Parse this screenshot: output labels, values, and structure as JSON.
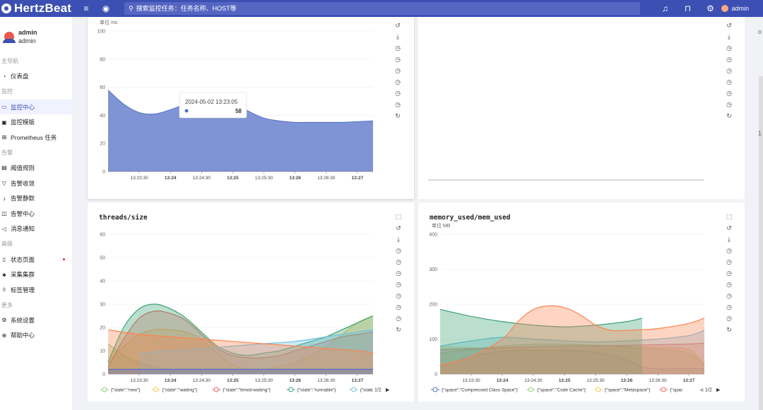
{
  "app": {
    "logo_text": "HertzBeat",
    "search_placeholder": "搜索监控任务：任务名称、HOST等",
    "user": "admin"
  },
  "user_card": {
    "name": "admin",
    "role": "admin"
  },
  "nav": [
    {
      "type": "group",
      "label": "主导航"
    },
    {
      "type": "item",
      "label": "仪表盘",
      "icon": "dashboard-icon",
      "glyph": "◔"
    },
    {
      "type": "group",
      "label": "监控"
    },
    {
      "type": "item",
      "label": "监控中心",
      "icon": "monitor-icon",
      "glyph": "▭",
      "active": true
    },
    {
      "type": "item",
      "label": "监控模版",
      "icon": "template-icon",
      "glyph": "▣"
    },
    {
      "type": "item",
      "label": "Prometheus 任务",
      "icon": "grid-icon",
      "glyph": "⊞"
    },
    {
      "type": "group",
      "label": "告警"
    },
    {
      "type": "item",
      "label": "阈值规则",
      "icon": "threshold-icon",
      "glyph": "▤"
    },
    {
      "type": "item",
      "label": "告警收敛",
      "icon": "filter-icon",
      "glyph": "▽"
    },
    {
      "type": "item",
      "label": "告警静默",
      "icon": "silence-icon",
      "glyph": "♪"
    },
    {
      "type": "item",
      "label": "告警中心",
      "icon": "alert-center-icon",
      "glyph": "◫"
    },
    {
      "type": "item",
      "label": "消息通知",
      "icon": "notify-icon",
      "glyph": "◁"
    },
    {
      "type": "group",
      "label": "高级"
    },
    {
      "type": "item",
      "label": "状态页面",
      "icon": "status-page-icon",
      "glyph": "▯",
      "dot": true
    },
    {
      "type": "item",
      "label": "采集集群",
      "icon": "cluster-icon",
      "glyph": "♣"
    },
    {
      "type": "item",
      "label": "标签管理",
      "icon": "tag-icon",
      "glyph": "◊"
    },
    {
      "type": "group",
      "label": "更多"
    },
    {
      "type": "item",
      "label": "系统设置",
      "icon": "settings-icon",
      "glyph": "⚙"
    },
    {
      "type": "item",
      "label": "帮助中心",
      "icon": "help-icon",
      "glyph": "⊕"
    }
  ],
  "tools_top": [
    "↺",
    "⤓",
    "◷",
    "◷",
    "◷",
    "◷",
    "◷",
    "◷",
    "↻"
  ],
  "tools_bottom": [
    "⬚",
    "↺",
    "⤓",
    "◷",
    "◷",
    "◷",
    "◷",
    "◷",
    "◷",
    "◷",
    "↻"
  ],
  "edge_chars": [
    "o",
    "1"
  ],
  "chart_data": [
    {
      "type": "area",
      "title": "",
      "unit_label": "单位  ms",
      "ylim": [
        0,
        100
      ],
      "yticks": [
        0,
        20,
        40,
        60,
        80,
        100
      ],
      "xticks": [
        "13:23:30",
        "13:24",
        "13:24:30",
        "13:25",
        "13:25:30",
        "13:26",
        "13:26:30",
        "13:27"
      ],
      "series": [
        {
          "color": "#5470c6",
          "x": [
            0,
            0.5,
            1,
            1.5,
            2,
            2.5,
            3,
            3.5,
            4,
            4.5,
            5,
            5.5,
            6,
            6.5,
            7,
            7.5,
            8,
            8.5
          ],
          "values": [
            58,
            48,
            42,
            41,
            44,
            48,
            51,
            52,
            49,
            43,
            38,
            36,
            35,
            35,
            35,
            35,
            35.5,
            36
          ]
        }
      ],
      "tooltip": {
        "time": "2024-05-02 13:23:05",
        "value": "58"
      }
    },
    {
      "type": "line",
      "title": "threads/size",
      "ylim": [
        0,
        60
      ],
      "yticks": [
        0,
        10,
        20,
        30,
        40,
        50,
        60
      ],
      "xticks": [
        "13:23:30",
        "13:24",
        "13:24:30",
        "13:25",
        "13:25:30",
        "13:26",
        "13:26:30",
        "13:27"
      ],
      "legend": [
        "{\"state\":\"new\"}",
        "{\"state\":\"waiting\"}",
        "{\"state\":\"timed-waiting\"}",
        "{\"state\":\"runnable\"}",
        "{\"stat"
      ],
      "legend_page": "1/2",
      "series": [
        {
          "color": "#91cc75",
          "x": [
            0,
            0.5,
            1,
            1.5,
            2,
            3,
            4,
            5,
            6,
            7,
            8,
            8.5
          ],
          "values": [
            13,
            8,
            5,
            3,
            2,
            2,
            2,
            2,
            2,
            2,
            2,
            2
          ]
        },
        {
          "color": "#fac858",
          "x": [
            0,
            0.5,
            1,
            1.5,
            2,
            2.5,
            3,
            3.5,
            4,
            4.5,
            5,
            5.5,
            6,
            6.5,
            7,
            7.5,
            8,
            8.5
          ],
          "values": [
            5,
            12,
            17,
            19,
            19,
            18,
            15,
            9,
            4,
            2,
            2,
            3,
            5,
            8,
            12,
            17,
            22,
            25
          ]
        },
        {
          "color": "#ee6666",
          "x": [
            0,
            0.5,
            1,
            1.5,
            2,
            2.5,
            3,
            3.5,
            4,
            4.5,
            5,
            5.5,
            6,
            6.5,
            7,
            7.5,
            8,
            8.5
          ],
          "values": [
            3,
            15,
            24,
            27,
            26,
            23,
            17,
            11,
            8,
            7,
            7,
            8,
            10,
            12,
            14,
            16,
            17,
            18
          ]
        },
        {
          "color": "#3ba272",
          "x": [
            0,
            0.5,
            1,
            1.5,
            2,
            2.5,
            3,
            3.5,
            4,
            4.5,
            5,
            5.5,
            6,
            6.5,
            7,
            7.5,
            8,
            8.5
          ],
          "values": [
            5,
            20,
            28,
            30,
            28,
            24,
            18,
            12,
            9,
            8,
            9,
            10,
            12,
            14,
            16,
            19,
            22,
            25
          ]
        },
        {
          "color": "#73c0de",
          "x": [
            1,
            2,
            3,
            4,
            5,
            6,
            7,
            8,
            8.5
          ],
          "values": [
            9,
            10,
            11,
            12,
            13,
            14,
            16,
            18,
            19
          ]
        },
        {
          "color": "#fc8452",
          "x": [
            0,
            1,
            2,
            3,
            4,
            5,
            6,
            7,
            8,
            8.5
          ],
          "values": [
            19,
            17,
            16,
            15,
            14,
            13,
            12,
            11,
            10,
            9
          ]
        },
        {
          "color": "#5470c6",
          "x": [
            0,
            2,
            4,
            6,
            8,
            8.5
          ],
          "values": [
            2,
            2,
            2,
            2,
            2,
            2
          ]
        }
      ]
    },
    {
      "type": "line",
      "title": "memory_used/mem_used",
      "unit_label": "单位  MB",
      "ylim": [
        0,
        400
      ],
      "yticks": [
        0,
        100,
        200,
        300,
        400
      ],
      "xticks": [
        "13:23:30",
        "13:24",
        "13:24:30",
        "13:25",
        "13:25:30",
        "13:26",
        "13:26:30",
        "13:27"
      ],
      "legend": [
        "{\"space\":\"Compressed Class Space\"}",
        "{\"space\":\"Code Cache\"}",
        "{\"space\":\"Metaspace\"}",
        "{\"spac"
      ],
      "legend_page": "1/2",
      "series": [
        {
          "color": "#5470c6",
          "x": [
            0,
            1,
            2,
            3,
            4,
            5,
            6,
            6.5,
            7,
            8,
            8.5
          ],
          "values": [
            20,
            50,
            65,
            68,
            68,
            62,
            40,
            20,
            15,
            15,
            15
          ]
        },
        {
          "color": "#91cc75",
          "x": [
            0,
            1,
            2,
            3,
            4,
            5,
            6,
            7,
            8,
            8.5
          ],
          "values": [
            60,
            70,
            80,
            85,
            85,
            82,
            78,
            72,
            60,
            25
          ]
        },
        {
          "color": "#fac858",
          "x": [
            0,
            1,
            2,
            3,
            4,
            5,
            6,
            7,
            8,
            8.5
          ],
          "values": [
            78,
            75,
            72,
            70,
            70,
            72,
            75,
            76,
            70,
            30
          ]
        },
        {
          "color": "#ee6666",
          "x": [
            0,
            1,
            2,
            3,
            4,
            5,
            6,
            7,
            8,
            8.5
          ],
          "values": [
            70,
            72,
            75,
            78,
            80,
            80,
            82,
            84,
            86,
            88
          ]
        },
        {
          "color": "#73c0de",
          "x": [
            0,
            1,
            2,
            3,
            4,
            5,
            6,
            7,
            8,
            8.5
          ],
          "values": [
            80,
            95,
            105,
            100,
            95,
            92,
            95,
            100,
            110,
            125
          ]
        },
        {
          "color": "#3ba272",
          "x": [
            0,
            1,
            2,
            3,
            4,
            5,
            6,
            6.5
          ],
          "values": [
            185,
            165,
            150,
            140,
            135,
            140,
            150,
            160
          ]
        },
        {
          "color": "#fc8452",
          "x": [
            0,
            1,
            2,
            2.5,
            3,
            3.5,
            4,
            4.5,
            5,
            5.5,
            6,
            7,
            8,
            8.5
          ],
          "values": [
            25,
            50,
            100,
            150,
            185,
            195,
            190,
            170,
            140,
            125,
            125,
            130,
            145,
            160
          ]
        }
      ]
    }
  ]
}
